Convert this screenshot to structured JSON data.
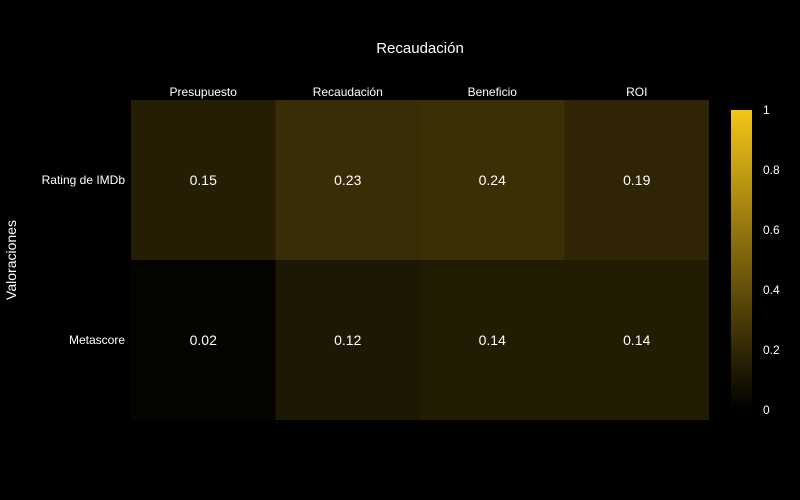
{
  "chart_data": {
    "type": "heatmap",
    "title": "Recaudación",
    "x_categories": [
      "Presupuesto",
      "Recaudación",
      "Beneficio",
      "ROI"
    ],
    "y_categories": [
      "Rating de IMDb",
      "Metascore"
    ],
    "ylabel": "Valoraciones",
    "values": [
      [
        0.15,
        0.23,
        0.24,
        0.19
      ],
      [
        0.02,
        0.12,
        0.14,
        0.14
      ]
    ],
    "cell_labels": [
      [
        "0.15",
        "0.23",
        "0.24",
        "0.19"
      ],
      [
        "0.02",
        "0.12",
        "0.14",
        "0.14"
      ]
    ],
    "colorscale": {
      "min": 0,
      "max": 1,
      "low_color": "#000000",
      "high_color": "#f5c518"
    },
    "colorbar_ticks": [
      "0",
      "0.2",
      "0.4",
      "0.6",
      "0.8",
      "1"
    ],
    "x_axis_position": "top",
    "background": "#000000"
  }
}
